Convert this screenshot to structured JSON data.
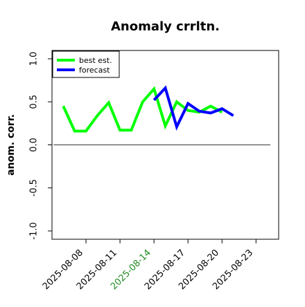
{
  "chart_data": {
    "type": "line",
    "title": "Anomaly crrltn.",
    "xlabel": "",
    "ylabel": "anom. corr.",
    "ylim": [
      -1.0,
      1.0
    ],
    "xlim": [
      "2025-08-05",
      "2025-08-25"
    ],
    "yticks": [
      "-1.0",
      "-0.5",
      "0.0",
      "0.5",
      "1.0"
    ],
    "xticks": [
      "2025-08-08",
      "2025-08-11",
      "2025-08-14",
      "2025-08-17",
      "2025-08-20",
      "2025-08-23"
    ],
    "highlighted_xtick": "2025-08-14",
    "highlight_color": "#228b22",
    "reference_line": 0.0,
    "legend_position": "top-left",
    "grid": false,
    "series": [
      {
        "name": "best est.",
        "color": "#00ff00",
        "x": [
          "2025-08-06",
          "2025-08-07",
          "2025-08-08",
          "2025-08-09",
          "2025-08-10",
          "2025-08-11",
          "2025-08-12",
          "2025-08-13",
          "2025-08-14",
          "2025-08-15",
          "2025-08-16",
          "2025-08-17",
          "2025-08-18",
          "2025-08-19",
          "2025-08-20",
          "2025-08-21"
        ],
        "values": [
          0.45,
          0.16,
          0.16,
          0.34,
          0.49,
          0.17,
          0.17,
          0.5,
          0.65,
          0.22,
          0.5,
          0.4,
          0.38,
          0.45,
          0.38,
          null
        ]
      },
      {
        "name": "forecast",
        "color": "#0000ff",
        "x": [
          "2025-08-14",
          "2025-08-15",
          "2025-08-16",
          "2025-08-17",
          "2025-08-18",
          "2025-08-19",
          "2025-08-20",
          "2025-08-21"
        ],
        "values": [
          0.52,
          0.66,
          0.21,
          0.48,
          0.39,
          0.37,
          0.42,
          0.34
        ]
      }
    ]
  }
}
